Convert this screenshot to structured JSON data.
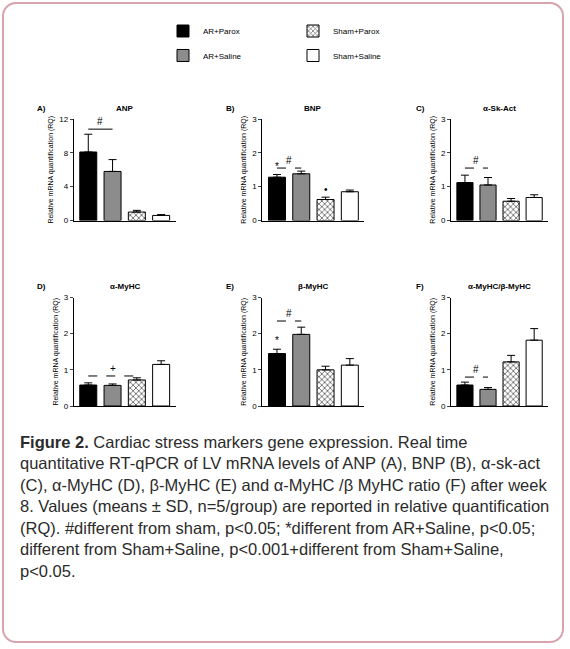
{
  "chart_data": [
    {
      "type": "bar",
      "panel": "A)",
      "title": "ANP",
      "ylabel": "Relative mRNA quantification (RQ)",
      "ylim": [
        0,
        12
      ],
      "yticks": [
        0,
        4,
        8,
        12
      ],
      "series": [
        {
          "name": "AR+Parox",
          "color": "#000000",
          "values": [
            8.1
          ],
          "error": [
            2.1
          ]
        },
        {
          "name": "AR+Saline",
          "color": "#8c8c8c",
          "values": [
            5.8
          ],
          "error": [
            1.4
          ]
        },
        {
          "name": "Sham+Parox",
          "color": "#555555",
          "marker": "hatch",
          "values": [
            1.0
          ],
          "error": [
            0.2
          ]
        },
        {
          "name": "Sham+Saline",
          "color": "#ffffff",
          "values": [
            0.6
          ],
          "error": [
            0.1
          ]
        }
      ],
      "annotations": [
        {
          "text": "#",
          "bars": [
            "AR+Parox",
            "AR+Saline"
          ],
          "y": 10.8,
          "line_style": "solid"
        }
      ]
    },
    {
      "type": "bar",
      "panel": "B)",
      "title": "BNP",
      "ylabel": "Relative mRNA quantification (RQ)",
      "ylim": [
        0,
        3
      ],
      "yticks": [
        0,
        1,
        2,
        3
      ],
      "series": [
        {
          "name": "AR+Parox",
          "color": "#000000",
          "values": [
            1.28
          ],
          "error": [
            0.08
          ]
        },
        {
          "name": "AR+Saline",
          "color": "#8c8c8c",
          "values": [
            1.38
          ],
          "error": [
            0.08
          ]
        },
        {
          "name": "Sham+Parox",
          "color": "#555555",
          "marker": "hatch",
          "values": [
            0.62
          ],
          "error": [
            0.07
          ]
        },
        {
          "name": "Sham+Saline",
          "color": "#ffffff",
          "values": [
            0.85
          ],
          "error": [
            0.05
          ]
        }
      ],
      "annotations": [
        {
          "text": "#",
          "bars": [
            "AR+Parox",
            "AR+Saline"
          ],
          "y": 1.55,
          "line_style": "dash"
        },
        {
          "text": "*",
          "bars": [
            "AR+Parox"
          ],
          "y": 1.36
        },
        {
          "text": "•",
          "bars": [
            "Sham+Parox"
          ],
          "y": 0.69
        }
      ]
    },
    {
      "type": "bar",
      "panel": "C)",
      "title": "α-Sk-Act",
      "ylabel": "Relative mRNA quantification (RQ)",
      "ylim": [
        0,
        3
      ],
      "yticks": [
        0,
        1,
        2,
        3
      ],
      "series": [
        {
          "name": "AR+Parox",
          "color": "#000000",
          "values": [
            1.12
          ],
          "error": [
            0.22
          ]
        },
        {
          "name": "AR+Saline",
          "color": "#8c8c8c",
          "values": [
            1.05
          ],
          "error": [
            0.22
          ]
        },
        {
          "name": "Sham+Parox",
          "color": "#555555",
          "marker": "hatch",
          "values": [
            0.57
          ],
          "error": [
            0.08
          ]
        },
        {
          "name": "Sham+Saline",
          "color": "#ffffff",
          "values": [
            0.68
          ],
          "error": [
            0.08
          ]
        }
      ],
      "annotations": [
        {
          "text": "#",
          "bars": [
            "AR+Parox",
            "AR+Saline"
          ],
          "y": 1.55,
          "line_style": "dash"
        }
      ]
    },
    {
      "type": "bar",
      "panel": "D)",
      "title": "α-MyHC",
      "ylabel": "Relative mRNA quantification (RQ)",
      "ylim": [
        0,
        3
      ],
      "yticks": [
        0,
        1,
        2,
        3
      ],
      "series": [
        {
          "name": "AR+Parox",
          "color": "#000000",
          "values": [
            0.58
          ],
          "error": [
            0.06
          ]
        },
        {
          "name": "AR+Saline",
          "color": "#8c8c8c",
          "values": [
            0.57
          ],
          "error": [
            0.04
          ]
        },
        {
          "name": "Sham+Parox",
          "color": "#555555",
          "marker": "hatch",
          "values": [
            0.72
          ],
          "error": [
            0.06
          ]
        },
        {
          "name": "Sham+Saline",
          "color": "#ffffff",
          "values": [
            1.15
          ],
          "error": [
            0.1
          ]
        }
      ],
      "annotations": [
        {
          "text": "+",
          "bars": [
            "AR+Parox",
            "Sham+Parox"
          ],
          "y": 0.83,
          "line_style": "dash"
        }
      ]
    },
    {
      "type": "bar",
      "panel": "E)",
      "title": "β-MyHC",
      "ylabel": "Relative mRNA quantification (RQ)",
      "ylim": [
        0,
        3
      ],
      "yticks": [
        0,
        1,
        2,
        3
      ],
      "series": [
        {
          "name": "AR+Parox",
          "color": "#000000",
          "values": [
            1.45
          ],
          "error": [
            0.12
          ]
        },
        {
          "name": "AR+Saline",
          "color": "#8c8c8c",
          "values": [
            1.98
          ],
          "error": [
            0.2
          ]
        },
        {
          "name": "Sham+Parox",
          "color": "#555555",
          "marker": "hatch",
          "values": [
            1.0
          ],
          "error": [
            0.1
          ]
        },
        {
          "name": "Sham+Saline",
          "color": "#ffffff",
          "values": [
            1.13
          ],
          "error": [
            0.18
          ]
        }
      ],
      "annotations": [
        {
          "text": "#",
          "bars": [
            "AR+Parox",
            "AR+Saline"
          ],
          "y": 2.35,
          "line_style": "dash"
        },
        {
          "text": "*",
          "bars": [
            "AR+Parox"
          ],
          "y": 1.6
        }
      ]
    },
    {
      "type": "bar",
      "panel": "F)",
      "title": "α-MyHC/β-MyHC",
      "ylabel": "Relative mRNA quantification (RQ)",
      "ylim": [
        0,
        3
      ],
      "yticks": [
        0,
        1,
        2,
        3
      ],
      "series": [
        {
          "name": "AR+Parox",
          "color": "#000000",
          "values": [
            0.58
          ],
          "error": [
            0.08
          ]
        },
        {
          "name": "AR+Saline",
          "color": "#8c8c8c",
          "values": [
            0.46
          ],
          "error": [
            0.05
          ]
        },
        {
          "name": "Sham+Parox",
          "color": "#555555",
          "marker": "hatch",
          "values": [
            1.22
          ],
          "error": [
            0.18
          ]
        },
        {
          "name": "Sham+Saline",
          "color": "#ffffff",
          "values": [
            1.82
          ],
          "error": [
            0.32
          ]
        }
      ],
      "annotations": [
        {
          "text": "#",
          "bars": [
            "AR+Parox",
            "AR+Saline"
          ],
          "y": 0.8,
          "line_style": "dash"
        }
      ]
    }
  ],
  "caption": {
    "label": "Figure 2.",
    "text": "Cardiac stress markers gene expression. Real time quantitative RT-qPCR of LV mRNA levels of ANP (A), BNP (B), α-sk-act (C), α-MyHC (D), β-MyHC (E) and α-MyHC /β MyHC ratio (F) after week 8. Values (means ± SD, n=5/group) are reported in relative quantification (RQ). #different from sham, p<0.05; *different from AR+Saline, p<0.05; different from Sham+Saline, p<0.001+different from Sham+Saline, p<0.05."
  }
}
